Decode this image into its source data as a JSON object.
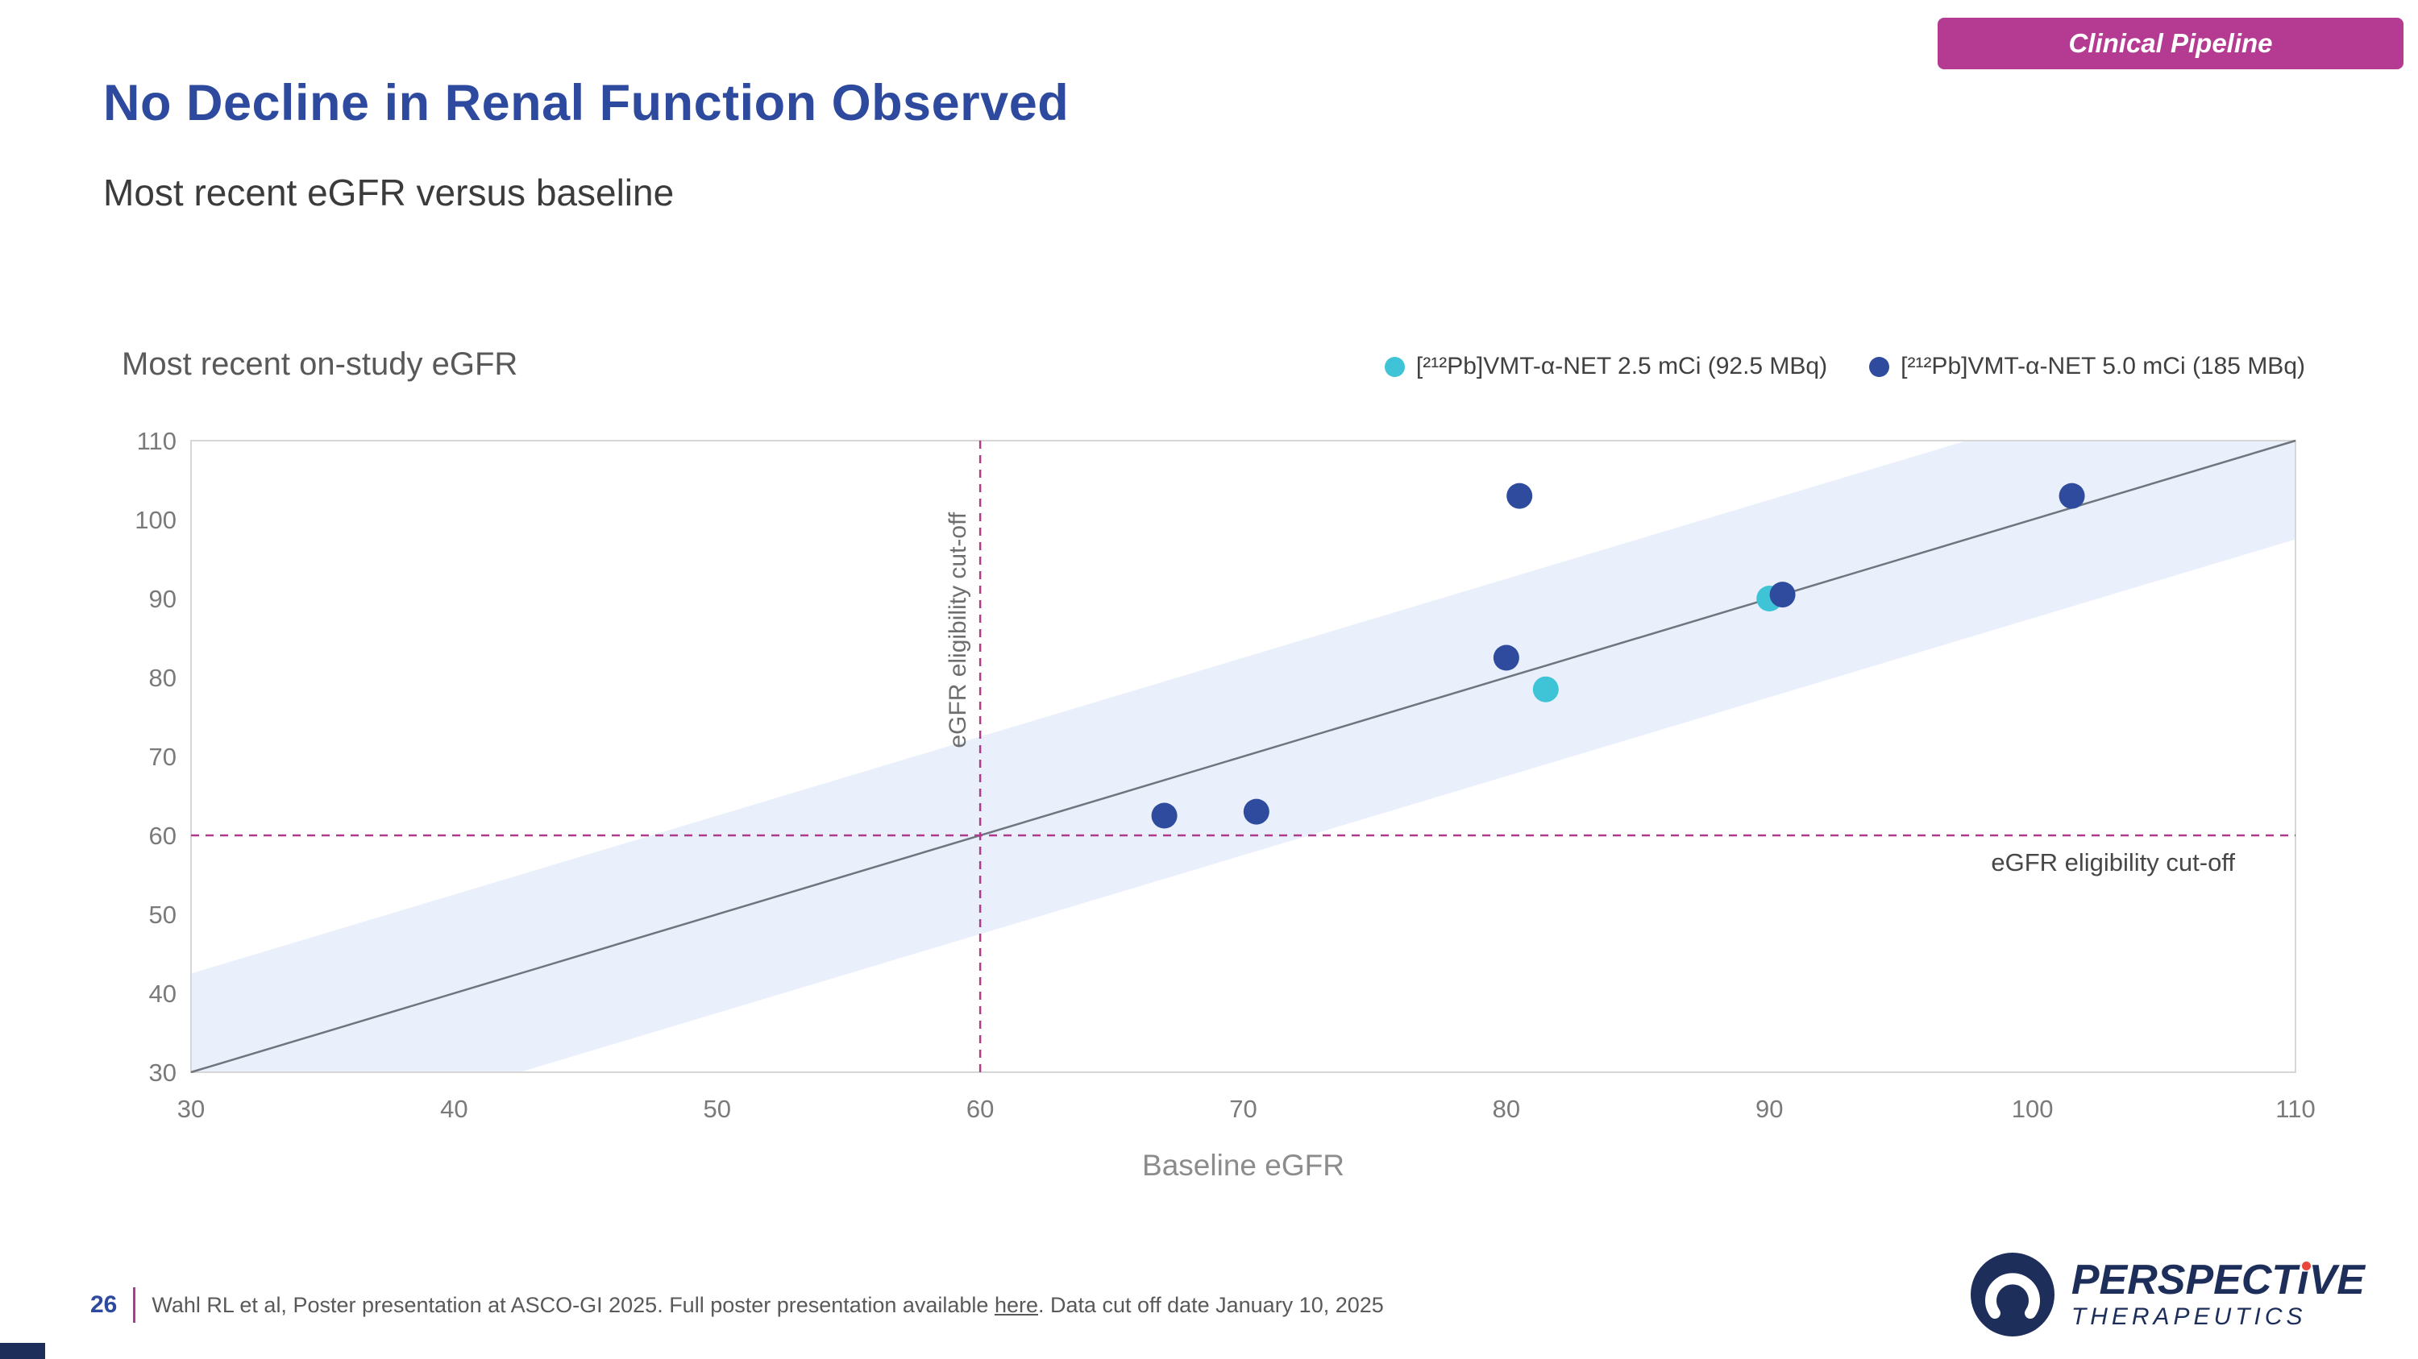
{
  "badge": {
    "label": "Clinical Pipeline"
  },
  "header": {
    "title": "No Decline in Renal Function Observed",
    "subtitle": "Most recent eGFR versus baseline"
  },
  "chart_data": {
    "type": "scatter",
    "title": "Most recent on-study eGFR",
    "xlabel": "Baseline eGFR",
    "ylabel": "Most recent on-study eGFR",
    "xlim": [
      30,
      110
    ],
    "ylim": [
      30,
      110
    ],
    "xticks": [
      30,
      40,
      50,
      60,
      70,
      80,
      90,
      100,
      110
    ],
    "yticks": [
      30,
      40,
      50,
      60,
      70,
      80,
      90,
      100,
      110
    ],
    "grid": false,
    "legend_position": "top-right",
    "identity_line": {
      "from": [
        30,
        30
      ],
      "to": [
        110,
        110
      ]
    },
    "shaded_band": {
      "along_identity": true,
      "halfwidth": 12.5
    },
    "cutoff_lines": {
      "x": 60,
      "y": 60,
      "style": "dashed",
      "label_vertical": "eGFR eligibility cut-off",
      "label_horizontal": "eGFR eligibility cut-off"
    },
    "series": [
      {
        "name": "[²¹²Pb]VMT-α-NET 2.5 mCi (92.5 MBq)",
        "color": "#3EC4D6",
        "points": [
          [
            81.5,
            78.5
          ],
          [
            90,
            90
          ]
        ]
      },
      {
        "name": "[²¹²Pb]VMT-α-NET 5.0 mCi (185 MBq)",
        "color": "#2E4B9E",
        "points": [
          [
            67,
            62.5
          ],
          [
            70.5,
            63
          ],
          [
            80,
            82.5
          ],
          [
            80.5,
            103
          ],
          [
            90.5,
            90.5
          ],
          [
            101.5,
            103
          ]
        ]
      }
    ]
  },
  "footer": {
    "page_number": "26",
    "note_pre": "Wahl RL et al, Poster presentation at ASCO-GI 2025. Full poster presentation available ",
    "note_link": "here",
    "note_post": ". Data cut off date January 10, 2025"
  },
  "logo": {
    "name_pre": "PERSPECT",
    "name_i": "i",
    "name_post": "VE",
    "subtitle": "THERAPEUTICS"
  },
  "colors": {
    "title_blue": "#2E4A9F",
    "badge_bg": "#B53A92",
    "magenta": "#B03A8C",
    "series_cyan": "#3EC4D6",
    "series_navy": "#2E4B9E",
    "band_blue": "#E9EFFB",
    "identity_gray": "#70757D",
    "plot_border": "#D6D6D6",
    "logo_navy": "#1D2E5A",
    "logo_red": "#E8483C"
  }
}
